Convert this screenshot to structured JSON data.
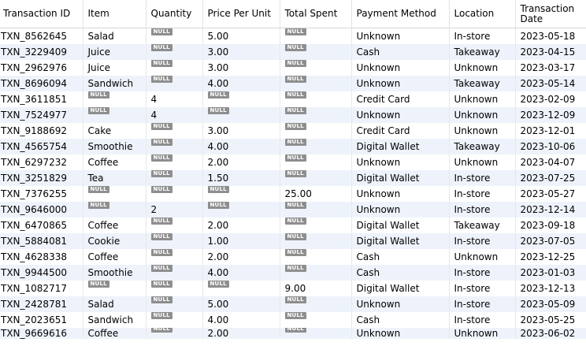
{
  "null_label": "NULL",
  "columns": [
    "Transaction ID",
    "Item",
    "Quantity",
    "Price Per Unit",
    "Total Spent",
    "Payment Method",
    "Location",
    "Transaction Date"
  ],
  "rows": [
    [
      "TXN_8562645",
      "Salad",
      null,
      "5.00",
      null,
      "Unknown",
      "In-store",
      "2023-05-18"
    ],
    [
      "TXN_3229409",
      "Juice",
      null,
      "3.00",
      null,
      "Cash",
      "Takeaway",
      "2023-04-15"
    ],
    [
      "TXN_2962976",
      "Juice",
      null,
      "3.00",
      null,
      "Unknown",
      "Unknown",
      "2023-03-17"
    ],
    [
      "TXN_8696094",
      "Sandwich",
      null,
      "4.00",
      null,
      "Unknown",
      "Takeaway",
      "2023-05-14"
    ],
    [
      "TXN_3611851",
      null,
      "4",
      null,
      null,
      "Credit Card",
      "Unknown",
      "2023-02-09"
    ],
    [
      "TXN_7524977",
      null,
      "4",
      null,
      null,
      "Unknown",
      "Unknown",
      "2023-12-09"
    ],
    [
      "TXN_9188692",
      "Cake",
      null,
      "3.00",
      null,
      "Credit Card",
      "Unknown",
      "2023-12-01"
    ],
    [
      "TXN_4565754",
      "Smoothie",
      null,
      "4.00",
      null,
      "Digital Wallet",
      "Takeaway",
      "2023-10-06"
    ],
    [
      "TXN_6297232",
      "Coffee",
      null,
      "2.00",
      null,
      "Unknown",
      "Unknown",
      "2023-04-07"
    ],
    [
      "TXN_3251829",
      "Tea",
      null,
      "1.50",
      null,
      "Digital Wallet",
      "In-store",
      "2023-07-25"
    ],
    [
      "TXN_7376255",
      null,
      null,
      null,
      "25.00",
      "Unknown",
      "In-store",
      "2023-05-27"
    ],
    [
      "TXN_9646000",
      null,
      "2",
      null,
      null,
      "Unknown",
      "In-store",
      "2023-12-14"
    ],
    [
      "TXN_6470865",
      "Coffee",
      null,
      "2.00",
      null,
      "Digital Wallet",
      "Takeaway",
      "2023-09-18"
    ],
    [
      "TXN_5884081",
      "Cookie",
      null,
      "1.00",
      null,
      "Digital Wallet",
      "In-store",
      "2023-07-05"
    ],
    [
      "TXN_4628338",
      "Coffee",
      null,
      "2.00",
      null,
      "Cash",
      "Unknown",
      "2023-12-25"
    ],
    [
      "TXN_9944500",
      "Smoothie",
      null,
      "4.00",
      null,
      "Cash",
      "In-store",
      "2023-01-03"
    ],
    [
      "TXN_1082717",
      null,
      null,
      null,
      "9.00",
      "Digital Wallet",
      "In-store",
      "2023-12-13"
    ],
    [
      "TXN_2428781",
      "Salad",
      null,
      "5.00",
      null,
      "Unknown",
      "In-store",
      "2023-05-09"
    ],
    [
      "TXN_2023651",
      "Sandwich",
      null,
      "4.00",
      null,
      "Cash",
      "In-store",
      "2023-05-25"
    ],
    [
      "TXN_9669616",
      "Coffee",
      null,
      "2.00",
      null,
      "Unknown",
      "Unknown",
      "2023-06-02"
    ]
  ]
}
